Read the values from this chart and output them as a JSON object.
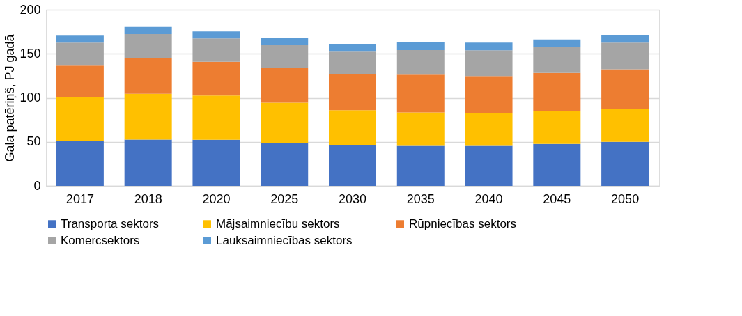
{
  "chart_data": {
    "type": "bar",
    "stacked": true,
    "ylabel": "Gala patēriņš, PJ gadā",
    "categories": [
      "2017",
      "2018",
      "2020",
      "2025",
      "2030",
      "2035",
      "2040",
      "2045",
      "2050"
    ],
    "series": [
      {
        "name": "Transporta sektors",
        "color": "#4472c4",
        "values": [
          50.5,
          52.6,
          52.4,
          48.7,
          46.3,
          45.5,
          45.5,
          47.6,
          50.0
        ]
      },
      {
        "name": "Mājsaimniecību sektors",
        "color": "#ffc000",
        "values": [
          50.3,
          51.9,
          50.2,
          45.8,
          39.7,
          37.9,
          36.9,
          36.9,
          37.1
        ]
      },
      {
        "name": "Rūpniecības sektors",
        "color": "#ed7d31",
        "values": [
          35.8,
          40.8,
          38.4,
          39.5,
          40.8,
          42.9,
          42.3,
          43.7,
          45.3
        ]
      },
      {
        "name": "Komercsektors",
        "color": "#a5a5a5",
        "values": [
          26.0,
          27.1,
          26.4,
          26.3,
          26.4,
          27.9,
          29.3,
          29.2,
          30.2
        ]
      },
      {
        "name": "Lauksaimniecības sektors",
        "color": "#5b9bd5",
        "values": [
          7.9,
          8.1,
          7.9,
          8.1,
          8.1,
          9.0,
          8.6,
          8.9,
          9.0
        ]
      }
    ],
    "ylim": [
      0,
      200
    ],
    "yticks": [
      0,
      50,
      100,
      150,
      200
    ],
    "grid": "y",
    "legend": "bottom"
  }
}
